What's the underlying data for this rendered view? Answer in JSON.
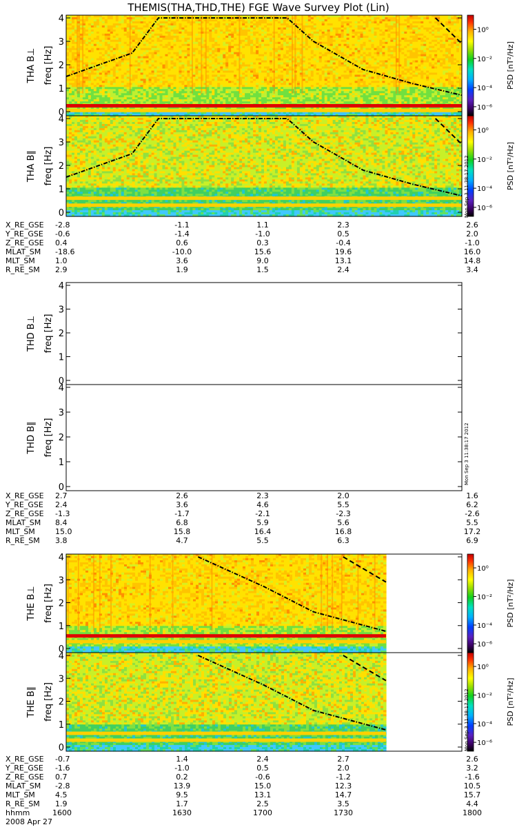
{
  "title": "THEMIS(THA,THD,THE) FGE Wave Survey Plot (Lin)",
  "yunit": "freq [Hz]",
  "y_tick_labels": [
    "0",
    "1",
    "2",
    "3",
    "4"
  ],
  "cbar": {
    "label": "PSD [nT²/Hz]",
    "tick_labels": [
      "10⁰",
      "10⁻²",
      "10⁻⁴",
      "10⁻⁶"
    ]
  },
  "timestamp": "Mon Sep 3 11:38:17 2012",
  "xaxis": {
    "row_labels": [
      "X_RE_GSE",
      "Y_RE_GSE",
      "Z_RE_GSE",
      "MLAT_SM",
      "MLT_SM",
      "R_RE_SM"
    ],
    "time_label": "hhmm",
    "time_ticks": [
      "1600",
      "1630",
      "1700",
      "1730",
      "1800"
    ],
    "date": "2008 Apr 27"
  },
  "chart_data": [
    {
      "type": "heatmap",
      "panel": "THA B⊥",
      "title": "THEMIS(THA,THD,THE) FGE Wave Survey Plot (Lin)",
      "ylabel": "THA B⊥",
      "yunit": "freq [Hz]",
      "ylim": [
        0,
        4
      ],
      "x_ticks": [
        "1600",
        "1630",
        "1700",
        "1730",
        "1800"
      ],
      "colorbar": {
        "label": "PSD [nT²/Hz]",
        "scale": "log",
        "range": [
          1e-07,
          10.0
        ]
      },
      "has_data": true,
      "data_end": "1800",
      "bands_hz": [
        0.05,
        0.25
      ],
      "dominant_level": "1e-1",
      "gyro_curves": [
        {
          "style": "dash-dot",
          "points": [
            [
              1600,
              1.5
            ],
            [
              1620,
              2.5
            ],
            [
              1628,
              4.0
            ],
            [
              1707,
              4.0
            ],
            [
              1715,
              3.0
            ],
            [
              1730,
              1.8
            ],
            [
              1745,
              1.2
            ],
            [
              1800,
              0.7
            ]
          ]
        },
        {
          "style": "dashed",
          "points": [
            [
              1752,
              4.0
            ],
            [
              1800,
              2.9
            ]
          ]
        }
      ]
    },
    {
      "type": "heatmap",
      "panel": "THA B∥",
      "ylabel": "THA B∥",
      "yunit": "freq [Hz]",
      "ylim": [
        0,
        4
      ],
      "colorbar": {
        "label": "PSD [nT²/Hz]",
        "scale": "log",
        "range": [
          1e-07,
          10.0
        ]
      },
      "has_data": true,
      "data_end": "1800",
      "bands_hz": [
        0.3,
        0.6
      ],
      "dominant_level": "1e-2",
      "gyro_curves": [
        {
          "style": "dash-dot",
          "points": [
            [
              1600,
              1.5
            ],
            [
              1620,
              2.5
            ],
            [
              1628,
              4.0
            ],
            [
              1707,
              4.0
            ],
            [
              1715,
              3.0
            ],
            [
              1730,
              1.8
            ],
            [
              1745,
              1.2
            ],
            [
              1800,
              0.7
            ]
          ]
        },
        {
          "style": "dashed",
          "points": [
            [
              1752,
              4.0
            ],
            [
              1800,
              2.9
            ]
          ]
        }
      ]
    },
    {
      "type": "heatmap",
      "panel": "THD B⊥",
      "ylabel": "THD B⊥",
      "yunit": "freq [Hz]",
      "ylim": [
        0,
        4
      ],
      "has_data": false
    },
    {
      "type": "heatmap",
      "panel": "THD B∥",
      "ylabel": "THD B∥",
      "yunit": "freq [Hz]",
      "ylim": [
        0,
        4
      ],
      "has_data": false
    },
    {
      "type": "heatmap",
      "panel": "THE B⊥",
      "ylabel": "THE B⊥",
      "yunit": "freq [Hz]",
      "ylim": [
        0,
        4
      ],
      "colorbar": {
        "label": "PSD [nT²/Hz]",
        "scale": "log",
        "range": [
          1e-07,
          10.0
        ]
      },
      "has_data": true,
      "data_end": "1737",
      "bands_hz": [
        0.3,
        0.55
      ],
      "dominant_level": "1e-1",
      "gyro_curves": [
        {
          "style": "dash-dot",
          "points": [
            [
              1640,
              4.0
            ],
            [
              1700,
              2.7
            ],
            [
              1715,
              1.6
            ],
            [
              1737,
              0.75
            ]
          ]
        },
        {
          "style": "dashed",
          "points": [
            [
              1724,
              4.0
            ],
            [
              1737,
              2.9
            ]
          ]
        }
      ]
    },
    {
      "type": "heatmap",
      "panel": "THE B∥",
      "ylabel": "THE B∥",
      "yunit": "freq [Hz]",
      "ylim": [
        0,
        4
      ],
      "colorbar": {
        "label": "PSD [nT²/Hz]",
        "scale": "log",
        "range": [
          1e-07,
          10.0
        ]
      },
      "has_data": true,
      "data_end": "1737",
      "bands_hz": [
        0.3,
        0.6
      ],
      "dominant_level": "1e-2",
      "gyro_curves": [
        {
          "style": "dash-dot",
          "points": [
            [
              1640,
              4.0
            ],
            [
              1700,
              2.7
            ],
            [
              1715,
              1.6
            ],
            [
              1737,
              0.75
            ]
          ]
        },
        {
          "style": "dashed",
          "points": [
            [
              1724,
              4.0
            ],
            [
              1737,
              2.9
            ]
          ]
        }
      ]
    }
  ],
  "ephemeris": [
    {
      "values": [
        [
          "-2.8",
          "-1.1",
          "1.1",
          "2.3",
          "2.6"
        ],
        [
          "-0.6",
          "-1.4",
          "-1.0",
          "0.5",
          "2.0"
        ],
        [
          "0.4",
          "0.6",
          "0.3",
          "-0.4",
          "-1.0"
        ],
        [
          "-18.6",
          "-10.0",
          "15.6",
          "19.6",
          "16.0"
        ],
        [
          "1.0",
          "3.6",
          "9.0",
          "13.1",
          "14.8"
        ],
        [
          "2.9",
          "1.9",
          "1.5",
          "2.4",
          "3.4"
        ]
      ]
    },
    {
      "values": [
        [
          "2.7",
          "2.6",
          "2.3",
          "2.0",
          "1.6"
        ],
        [
          "2.4",
          "3.6",
          "4.6",
          "5.5",
          "6.2"
        ],
        [
          "-1.3",
          "-1.7",
          "-2.1",
          "-2.3",
          "-2.6"
        ],
        [
          "8.4",
          "6.8",
          "5.9",
          "5.6",
          "5.5"
        ],
        [
          "15.0",
          "15.8",
          "16.4",
          "16.8",
          "17.2"
        ],
        [
          "3.8",
          "4.7",
          "5.5",
          "6.3",
          "6.9"
        ]
      ]
    },
    {
      "values": [
        [
          "-0.7",
          "1.4",
          "2.4",
          "2.7",
          "2.6"
        ],
        [
          "-1.6",
          "-1.0",
          "0.5",
          "2.0",
          "3.2"
        ],
        [
          "0.7",
          "0.2",
          "-0.6",
          "-1.2",
          "-1.6"
        ],
        [
          "-2.8",
          "13.9",
          "15.0",
          "12.3",
          "10.5"
        ],
        [
          "4.5",
          "9.5",
          "13.1",
          "14.7",
          "15.7"
        ],
        [
          "1.9",
          "1.7",
          "2.5",
          "3.5",
          "4.4"
        ]
      ]
    }
  ]
}
